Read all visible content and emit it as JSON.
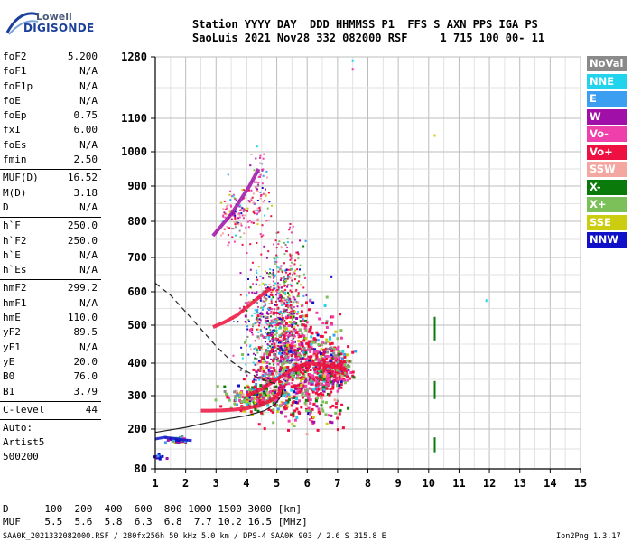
{
  "logo": {
    "word1": "Lowell",
    "word2": "DIGISONDE"
  },
  "header": {
    "top": "Station YYYY DAY  DDD HHMMSS P1  FFS S AXN PPS IGA PS",
    "bottom": "SaoLuis 2021 Nov28 332 082000 RSF     1 715 100 00- 11"
  },
  "params": {
    "group1": [
      {
        "label": "foF2",
        "value": "5.200"
      },
      {
        "label": "foF1",
        "value": "N/A"
      },
      {
        "label": "foF1p",
        "value": "N/A"
      },
      {
        "label": "foE",
        "value": "N/A"
      },
      {
        "label": "foEp",
        "value": "0.75"
      },
      {
        "label": "fxI",
        "value": "6.00"
      },
      {
        "label": "foEs",
        "value": "N/A"
      },
      {
        "label": "fmin",
        "value": "2.50"
      }
    ],
    "group2": [
      {
        "label": "MUF(D)",
        "value": "16.52"
      },
      {
        "label": "M(D)",
        "value": "3.18"
      },
      {
        "label": "D",
        "value": "N/A"
      }
    ],
    "group3": [
      {
        "label": "h`F",
        "value": "250.0"
      },
      {
        "label": "h`F2",
        "value": "250.0"
      },
      {
        "label": "h`E",
        "value": "N/A"
      },
      {
        "label": "h`Es",
        "value": "N/A"
      }
    ],
    "group4": [
      {
        "label": "hmF2",
        "value": "299.2"
      },
      {
        "label": "hmF1",
        "value": "N/A"
      },
      {
        "label": "hmE",
        "value": "110.0"
      },
      {
        "label": "yF2",
        "value": "89.5"
      },
      {
        "label": "yF1",
        "value": "N/A"
      },
      {
        "label": "yE",
        "value": "20.0"
      },
      {
        "label": "B0",
        "value": "76.0"
      },
      {
        "label": "B1",
        "value": "3.79"
      }
    ],
    "group5": [
      {
        "label": "C-level",
        "value": "44"
      }
    ],
    "auto": [
      "Auto:",
      "Artist5",
      "500200"
    ]
  },
  "legend": [
    {
      "label": "NoVal",
      "color": "#8a8a8a"
    },
    {
      "label": "NNE",
      "color": "#22d3ee"
    },
    {
      "label": "E",
      "color": "#3b9ef0"
    },
    {
      "label": "W",
      "color": "#a010a8"
    },
    {
      "label": "Vo-",
      "color": "#ee3faa"
    },
    {
      "label": "Vo+",
      "color": "#ee1040"
    },
    {
      "label": "SSW",
      "color": "#f4a6a0"
    },
    {
      "label": "X-",
      "color": "#0a7a0a"
    },
    {
      "label": "X+",
      "color": "#7cc05a"
    },
    {
      "label": "SSE",
      "color": "#cccc10"
    },
    {
      "label": "NNW",
      "color": "#1010c8"
    }
  ],
  "bottom_table": {
    "d_row": "D      100  200  400  600  800 1000 1500 3000 [km]",
    "muf_row": "MUF    5.5  5.6  5.8  6.3  6.8  7.7 10.2 16.5 [MHz]"
  },
  "footer": {
    "left": "SAA0K_2021332082000.RSF / 280fx256h 50 kHz 5.0 km / DPS-4 SAA0K 903 / 2.6 S 315.8 E",
    "right": "Ion2Png 1.3.17"
  },
  "chart_data": {
    "type": "scatter",
    "title": "",
    "xlabel": "",
    "ylabel": "",
    "x_range": [
      1,
      15
    ],
    "y_breaks": [
      80,
      200,
      300,
      400,
      500,
      600,
      700,
      800,
      900,
      1000,
      1100,
      1280
    ],
    "x_ticks": [
      "1",
      "2",
      "3",
      "4",
      "5",
      "6",
      "7",
      "8",
      "9",
      "10",
      "11",
      "12",
      "13",
      "14",
      "15"
    ],
    "y_ticks": [
      "80",
      "200",
      "300",
      "400",
      "500",
      "600",
      "700",
      "800",
      "900",
      "1000",
      "1100",
      "1280"
    ],
    "grid": true,
    "traces": [
      {
        "name": "O-trace F2 lower",
        "x": [
          2.5,
          2.8,
          3.2,
          3.6,
          4.0,
          4.4,
          4.8,
          5.0,
          5.2
        ],
        "y": [
          255,
          255,
          256,
          258,
          262,
          270,
          285,
          300,
          320
        ]
      },
      {
        "name": "O-trace F2 upper",
        "x": [
          4.0,
          4.5,
          5.0,
          5.5,
          6.0,
          6.5,
          7.0,
          7.3
        ],
        "y": [
          300,
          320,
          350,
          380,
          400,
          395,
          385,
          380
        ]
      },
      {
        "name": "Oblique upper",
        "x": [
          2.9,
          3.3,
          3.7,
          4.1,
          4.5,
          4.8
        ],
        "y": [
          495,
          510,
          530,
          560,
          590,
          610
        ]
      },
      {
        "name": "Multi-hop",
        "x": [
          2.9,
          3.2,
          3.5,
          3.8,
          4.1,
          4.4
        ],
        "y": [
          760,
          790,
          820,
          860,
          900,
          950
        ]
      },
      {
        "name": "Es low",
        "x": [
          1.0,
          1.3,
          1.6,
          1.9,
          2.2
        ],
        "y": [
          170,
          175,
          172,
          168,
          165
        ]
      }
    ],
    "profile": {
      "solid": [
        [
          1.0,
          190
        ],
        [
          2.0,
          205
        ],
        [
          3.0,
          225
        ],
        [
          4.0,
          240
        ],
        [
          4.6,
          255
        ],
        [
          4.95,
          275
        ],
        [
          5.15,
          300
        ],
        [
          5.2,
          320
        ]
      ],
      "dashed": [
        [
          1.0,
          625
        ],
        [
          1.5,
          590
        ],
        [
          2.0,
          540
        ],
        [
          2.5,
          490
        ],
        [
          3.0,
          445
        ],
        [
          3.5,
          405
        ],
        [
          4.0,
          375
        ],
        [
          4.5,
          350
        ],
        [
          5.0,
          335
        ]
      ]
    },
    "x_marks": [
      {
        "x": 10.2,
        "y0": 460,
        "y1": 525,
        "color": "#0a7a0a"
      },
      {
        "x": 10.2,
        "y0": 290,
        "y1": 345,
        "color": "#0a7a0a"
      },
      {
        "x": 10.2,
        "y0": 130,
        "y1": 175,
        "color": "#0a7a0a"
      }
    ],
    "isolated_points": [
      {
        "x": 7.5,
        "y": 1270,
        "color": "#22d3ee"
      },
      {
        "x": 7.5,
        "y": 1245,
        "color": "#ee3faa"
      },
      {
        "x": 11.9,
        "y": 575,
        "color": "#22d3ee"
      },
      {
        "x": 10.2,
        "y": 1050,
        "color": "#cccc10"
      },
      {
        "x": 6.8,
        "y": 645,
        "color": "#1010c8"
      }
    ]
  }
}
